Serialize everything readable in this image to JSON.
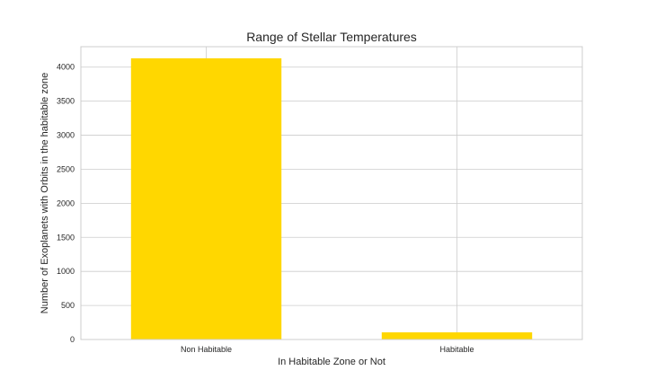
{
  "chart_data": {
    "type": "bar",
    "title": "Range of Stellar Temperatures",
    "xlabel": "In Habitable Zone or Not",
    "ylabel": "Number of Exoplanets with Orbits in the habitable zone",
    "categories": [
      "Non Habitable",
      "Habitable"
    ],
    "values": [
      4130,
      105
    ],
    "ylim": [
      0,
      4300
    ],
    "yticks": [
      0,
      500,
      1000,
      1500,
      2000,
      2500,
      3000,
      3500,
      4000
    ],
    "grid": true,
    "bar_color": "#ffd700",
    "grid_color": "#cccccc"
  }
}
